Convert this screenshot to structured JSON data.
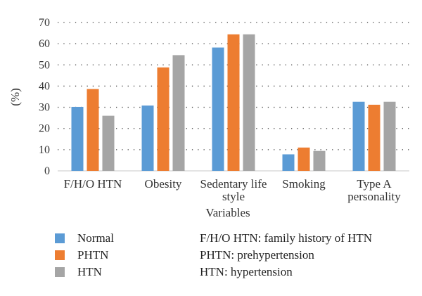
{
  "chart_data": {
    "type": "bar",
    "categories": [
      [
        "F/H/O HTN"
      ],
      [
        "Obesity"
      ],
      [
        "Sedentary life",
        "style"
      ],
      [
        "Smoking"
      ],
      [
        "Type A",
        "personality"
      ]
    ],
    "series": [
      {
        "name": "Normal",
        "color": "#5b9bd5",
        "values": [
          30.2,
          30.8,
          58.2,
          7.8,
          32.6
        ]
      },
      {
        "name": "PHTN",
        "color": "#ed7d31",
        "values": [
          38.6,
          48.8,
          64.4,
          11.0,
          31.2
        ]
      },
      {
        "name": "HTN",
        "color": "#a5a5a5",
        "values": [
          26.0,
          54.6,
          64.4,
          9.4,
          32.6
        ]
      }
    ],
    "yticks": [
      "0",
      "10",
      "20",
      "30",
      "40",
      "50",
      "60",
      "70"
    ],
    "ylim": [
      0,
      70
    ],
    "ylabel": "(%)",
    "xlabel": "Variables",
    "grid": "dotted"
  },
  "notes": [
    "F/H/O HTN: family history of HTN",
    "PHTN: prehypertension",
    "HTN: hypertension"
  ]
}
